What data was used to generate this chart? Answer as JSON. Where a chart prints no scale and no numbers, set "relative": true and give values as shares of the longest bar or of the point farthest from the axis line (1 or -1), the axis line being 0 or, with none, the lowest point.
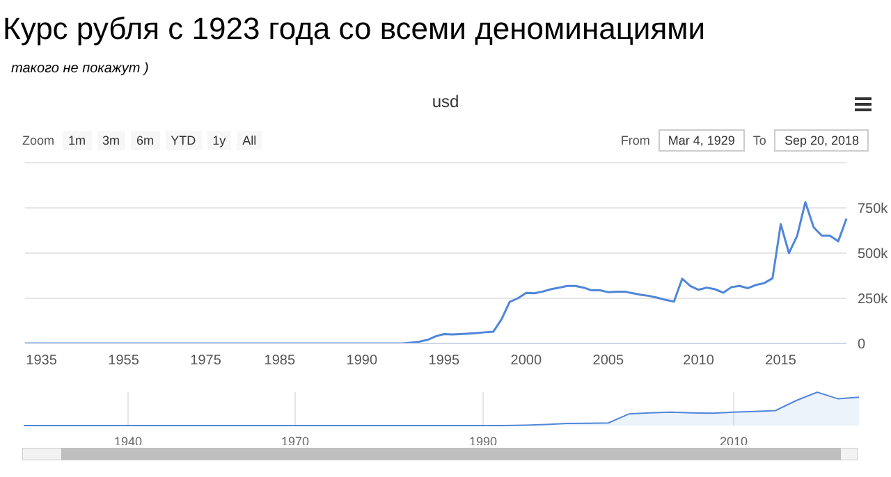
{
  "chart_data": [
    {
      "type": "line",
      "title": "Курс рубля с 1923 года со всеми деноминациями",
      "subtitle": "такого не покажут )",
      "annotations": [
        "usd",
        "Zoom",
        "1m",
        "3m",
        "6m",
        "YTD",
        "1y",
        "All",
        "From",
        "Mar 4, 1929",
        "To",
        "Sep 20, 2018"
      ],
      "categories": [
        null,
        null,
        "1935",
        null,
        null,
        null,
        null,
        null,
        null,
        null,
        null,
        null,
        "1955",
        null,
        null,
        null,
        null,
        null,
        null,
        null,
        null,
        null,
        "1975",
        null,
        null,
        null,
        null,
        null,
        null,
        null,
        null,
        "1985",
        null,
        null,
        null,
        null,
        null,
        null,
        null,
        null,
        null,
        "1990",
        null,
        null,
        null,
        null,
        null,
        null,
        null,
        null,
        null,
        "1995",
        null,
        null,
        null,
        null,
        null,
        null,
        null,
        null,
        null,
        "2000",
        null,
        null,
        null,
        null,
        null,
        null,
        null,
        null,
        null,
        "2005",
        null,
        null,
        null,
        null,
        null,
        null,
        null,
        null,
        null,
        null,
        "2010",
        null,
        null,
        null,
        null,
        null,
        null,
        null,
        null,
        null,
        "2015",
        null,
        null,
        null,
        null,
        null,
        null,
        null,
        null
      ],
      "series": [
        {
          "color": "#4f86d9",
          "values": [
            0,
            0,
            0,
            0,
            0,
            0,
            0,
            0,
            0,
            0,
            0,
            0,
            0,
            0,
            0,
            0,
            0,
            0,
            0,
            0,
            0,
            0,
            0,
            0,
            0,
            0,
            0,
            0,
            0,
            0,
            0,
            0,
            0,
            0,
            0,
            0,
            0,
            0,
            0,
            0,
            0,
            0,
            0,
            0,
            0,
            0,
            0,
            5000,
            10000,
            20000,
            40000,
            52000,
            50000,
            52000,
            55000,
            58000,
            62000,
            65000,
            133000,
            230000,
            250000,
            280000,
            278000,
            287000,
            300000,
            309000,
            318000,
            318000,
            309000,
            294000,
            294000,
            284000,
            287000,
            287000,
            278000,
            269000,
            263000,
            253000,
            241000,
            232000,
            358000,
            318000,
            297000,
            309000,
            300000,
            281000,
            312000,
            318000,
            306000,
            324000,
            334000,
            361000,
            660000,
            500000,
            596000,
            782000,
            643000,
            596000,
            596000,
            565000,
            690000
          ]
        }
      ],
      "ylim": [
        0,
        1000000
      ],
      "yticks": [
        0,
        {
          "value": 250000,
          "label": "250k"
        },
        {
          "value": 500000,
          "label": "500k"
        },
        {
          "value": 750000,
          "label": "750k"
        },
        {
          "value": 1000000,
          "label": null
        }
      ],
      "grid": "y",
      "legend": false,
      "marker": "none",
      "line_style": "solid"
    },
    {
      "type": "area",
      "relative": true,
      "color": "#4f86d9",
      "categories": [
        null,
        null,
        null,
        null,
        null,
        "1940",
        null,
        null,
        null,
        null,
        null,
        null,
        null,
        "1970",
        null,
        null,
        null,
        null,
        null,
        null,
        null,
        null,
        "1990",
        null,
        null,
        null,
        null,
        null,
        null,
        null,
        null,
        null,
        null,
        null,
        "2010",
        null,
        null,
        null,
        null,
        null,
        null
      ],
      "values": [
        0,
        0,
        0,
        0,
        0,
        0,
        0,
        0,
        0,
        0,
        0,
        0,
        0,
        0,
        0,
        0,
        0,
        0,
        0,
        0,
        0,
        0,
        0,
        0,
        0.01,
        0.03,
        0.06,
        0.07,
        0.08,
        0.35,
        0.38,
        0.4,
        0.38,
        0.37,
        0.4,
        0.42,
        0.45,
        0.75,
        1,
        0.8,
        0.85
      ],
      "grid": "x",
      "legend": false
    }
  ]
}
